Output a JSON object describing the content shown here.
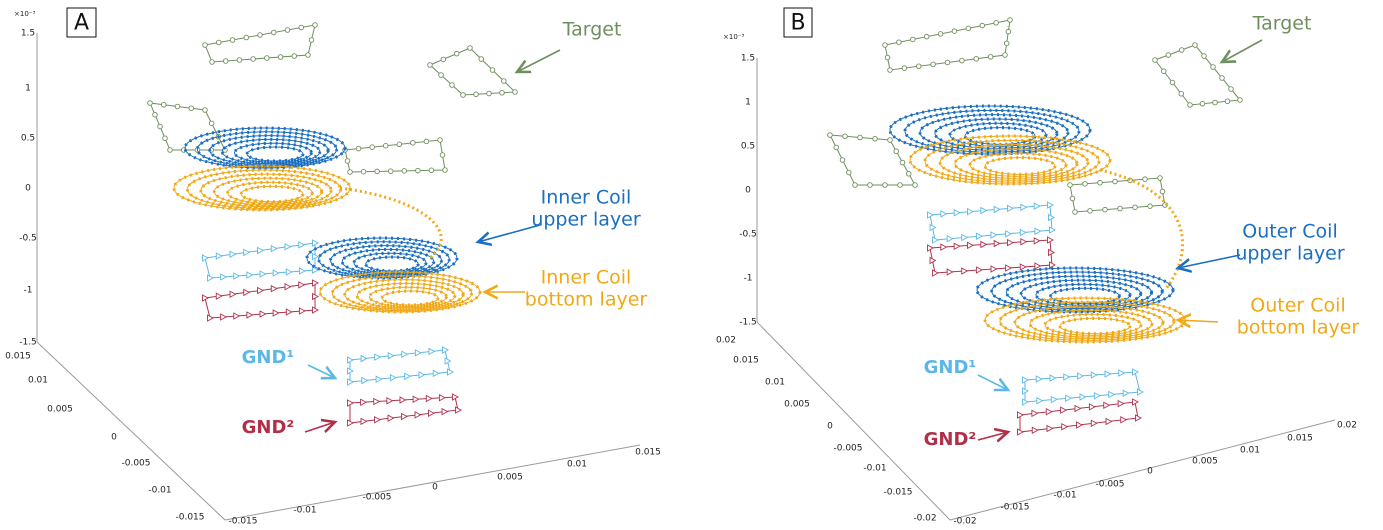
{
  "panels": [
    {
      "label": "A",
      "z_exponent": "×10⁻³",
      "z_ticks": [
        "1.5",
        "1",
        "0.5",
        "0",
        "-0.5",
        "-1",
        "-1.5"
      ],
      "y_ticks": [
        "0.015",
        "0.01",
        "0.005",
        "0",
        "-0.005",
        "-0.01",
        "-0.015"
      ],
      "x_ticks": [
        "-0.015",
        "-0.01",
        "-0.005",
        "0",
        "0.005",
        "0.01",
        "0.015"
      ],
      "annotations": [
        {
          "lines": [
            "Target"
          ]
        },
        {
          "lines": [
            "Inner Coil",
            "upper layer"
          ]
        },
        {
          "lines": [
            "Inner Coil",
            "bottom layer"
          ]
        },
        {
          "lines": [
            "GND¹"
          ]
        },
        {
          "lines": [
            "GND²"
          ]
        }
      ]
    },
    {
      "label": "B",
      "z_exponent": "×10⁻³",
      "z_ticks": [
        "1.5",
        "1",
        "0.5",
        "0",
        "-0.5",
        "-1",
        "-1.5"
      ],
      "y_ticks": [
        "0.02",
        "0.015",
        "0.01",
        "0.005",
        "0",
        "-0.005",
        "-0.01",
        "-0.015",
        "-0.02"
      ],
      "x_ticks": [
        "-0.02",
        "-0.015",
        "-0.01",
        "-0.005",
        "0",
        "0.005",
        "0.01",
        "0.015",
        "0.02"
      ],
      "annotations": [
        {
          "lines": [
            "Target"
          ]
        },
        {
          "lines": [
            "Outer Coil",
            "upper layer"
          ]
        },
        {
          "lines": [
            "Outer Coil",
            "bottom layer"
          ]
        },
        {
          "lines": [
            "GND¹"
          ]
        },
        {
          "lines": [
            "GND²"
          ]
        }
      ]
    }
  ]
}
